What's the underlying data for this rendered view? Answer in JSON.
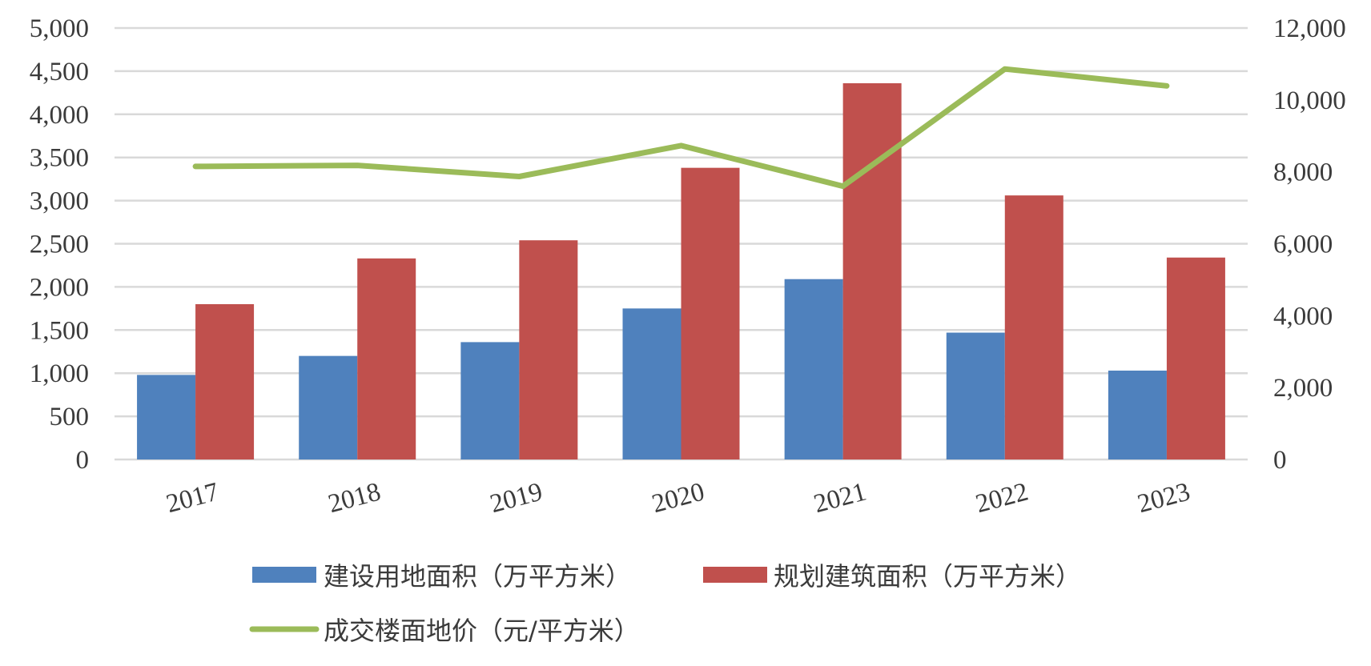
{
  "chart_data": {
    "type": "bar",
    "title": "",
    "categories": [
      "2017",
      "2018",
      "2019",
      "2020",
      "2021",
      "2022",
      "2023"
    ],
    "series": [
      {
        "name": "建设用地面积（万平方米）",
        "type": "bar",
        "axis": "left",
        "color": "#4f81bd",
        "values": [
          980,
          1200,
          1360,
          1750,
          2090,
          1470,
          1030
        ]
      },
      {
        "name": "规划建筑面积（万平方米）",
        "type": "bar",
        "axis": "left",
        "color": "#c0504d",
        "values": [
          1800,
          2330,
          2540,
          3380,
          4360,
          3060,
          2340
        ]
      },
      {
        "name": "成交楼面地价（元/平方米）",
        "type": "line",
        "axis": "right",
        "color": "#9bbb59",
        "values": [
          8150,
          8180,
          7870,
          8730,
          7600,
          10860,
          10390
        ]
      }
    ],
    "y_left": {
      "min": 0,
      "max": 5000,
      "step": 500,
      "tick_labels": [
        "0",
        "500",
        "1,000",
        "1,500",
        "2,000",
        "2,500",
        "3,000",
        "3,500",
        "4,000",
        "4,500",
        "5,000"
      ]
    },
    "y_right": {
      "min": 0,
      "max": 12000,
      "step": 2000,
      "tick_labels": [
        "0",
        "2,000",
        "4,000",
        "6,000",
        "8,000",
        "10,000",
        "12,000"
      ]
    },
    "grid": true,
    "legend_position": "bottom"
  }
}
